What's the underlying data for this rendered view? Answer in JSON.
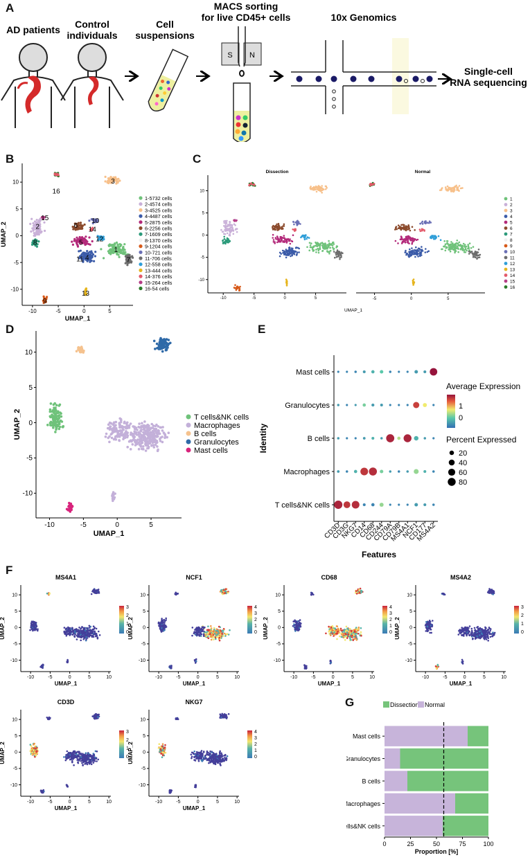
{
  "panels": {
    "A": "A",
    "B": "B",
    "C": "C",
    "D": "D",
    "E": "E",
    "F": "F",
    "G": "G"
  },
  "workflow": {
    "ad_patients": "AD patients",
    "control": [
      "Control",
      "individuals"
    ],
    "cell_suspensions": [
      "Cell",
      "suspensions"
    ],
    "macs": [
      "MACS sorting",
      "for live CD45+ cells"
    ],
    "macs_s": "S",
    "macs_n": "N",
    "tenx": "10x Genomics",
    "scrna": [
      "Single-cell",
      "RNA sequencing"
    ]
  },
  "umap": {
    "xlabel": "UMAP_1",
    "ylabel": "UMAP_2"
  },
  "cluster_colors": [
    "#6fc27a",
    "#c9b0d8",
    "#f7c08a",
    "#3b5ba8",
    "#b32a7a",
    "#8b4a2c",
    "#2b9a7a",
    "#f0f0f0",
    "#d75a1a",
    "#6a6fb5",
    "#6d6d6d",
    "#2f9ed8",
    "#e6b51e",
    "#e35a6a",
    "#b53d86",
    "#2a7a2a"
  ],
  "panelB": {
    "legend": [
      "1-5732 cells",
      "2-4574 cells",
      "3-4525 cells",
      "4-4487 cells",
      "5-2875 cells",
      "6-2256 cells",
      "7-1609 cells",
      "8-1370 cells",
      "9-1204 cells",
      "10-721 cells",
      "11-706 cells",
      "12-558 cells",
      "13-444 cells",
      "14-376 cells",
      "15-264 cells",
      "16-54 cells"
    ],
    "xticks": [
      "-10",
      "-5",
      "0",
      "5"
    ],
    "yticks": [
      "10",
      "5",
      "0",
      "-5",
      "-10"
    ],
    "cluster_labels": [
      "1",
      "2",
      "3",
      "4",
      "5",
      "6",
      "7",
      "8",
      "9",
      "10",
      "11",
      "12",
      "13",
      "14",
      "15",
      "16"
    ]
  },
  "panelC": {
    "titles": [
      "Dissection",
      "Normal"
    ],
    "legend": [
      "1",
      "2",
      "3",
      "4",
      "5",
      "6",
      "7",
      "8",
      "9",
      "10",
      "11",
      "12",
      "13",
      "14",
      "15",
      "16"
    ],
    "xticks": [
      "-10",
      "-5",
      "0",
      "5"
    ],
    "yticks": [
      "10",
      "5",
      "0",
      "-5",
      "-10"
    ]
  },
  "panelD": {
    "legend": [
      "T cells&NK cells",
      "Macrophages",
      "B cells",
      "Granulocytes",
      "Mast cells"
    ],
    "colors": [
      "#6fc27a",
      "#c3b0d9",
      "#f5c28e",
      "#2f6aa8",
      "#d8247c"
    ],
    "xticks": [
      "-10",
      "-5",
      "0",
      "5"
    ],
    "yticks": [
      "10",
      "5",
      "0",
      "-5",
      "-10"
    ]
  },
  "chart_data": [
    {
      "type": "scatter",
      "panel": "E",
      "title": "",
      "xlabel": "Features",
      "ylabel": "Identity",
      "features": [
        "CD3D",
        "CD3G",
        "NKG7",
        "CD14",
        "CD68",
        "CD244",
        "CD79A",
        "CD79B",
        "MS4A1",
        "NCF1",
        "CD177",
        "MS4A2"
      ],
      "identities": [
        "Mast cells",
        "Granulocytes",
        "B cells",
        "Macrophages",
        "T cells&NK cells"
      ],
      "legend_title_color": "Average Expression",
      "color_ticks": [
        "1",
        "0"
      ],
      "legend_title_size": "Percent Expressed",
      "size_ticks": [
        "20",
        "40",
        "60",
        "80"
      ],
      "pct_expressed": [
        [
          2,
          2,
          3,
          5,
          8,
          10,
          3,
          2,
          2,
          10,
          5,
          70
        ],
        [
          3,
          2,
          2,
          8,
          6,
          5,
          2,
          2,
          2,
          45,
          15,
          2
        ],
        [
          3,
          2,
          2,
          4,
          5,
          3,
          85,
          8,
          80,
          20,
          3,
          2
        ],
        [
          4,
          3,
          8,
          75,
          82,
          10,
          3,
          3,
          3,
          25,
          5,
          3
        ],
        [
          88,
          55,
          75,
          5,
          8,
          15,
          2,
          2,
          2,
          10,
          5,
          3
        ]
      ],
      "avg_expression": [
        [
          -0.3,
          -0.3,
          -0.3,
          -0.2,
          -0.1,
          0.0,
          -0.3,
          -0.3,
          -0.3,
          -0.2,
          -0.2,
          2.0
        ],
        [
          -0.2,
          -0.3,
          -0.2,
          0.1,
          -0.2,
          -0.2,
          -0.3,
          -0.3,
          -0.3,
          1.5,
          0.5,
          -0.3
        ],
        [
          -0.2,
          -0.3,
          -0.3,
          -0.2,
          -0.1,
          -0.2,
          1.8,
          0.3,
          1.8,
          -0.1,
          -0.2,
          -0.3
        ],
        [
          -0.2,
          -0.3,
          -0.1,
          1.6,
          1.7,
          0.1,
          -0.2,
          -0.3,
          -0.2,
          0.2,
          -0.1,
          -0.3
        ],
        [
          1.8,
          1.6,
          1.7,
          -0.3,
          -0.3,
          0.2,
          -0.3,
          -0.3,
          -0.3,
          -0.2,
          -0.2,
          -0.3
        ]
      ]
    },
    {
      "type": "bar",
      "panel": "G",
      "title": "",
      "orientation": "horizontal-stacked",
      "categories": [
        "Mast cells",
        "Granulocytes",
        "B cells",
        "Macrophages",
        "T cells&NK cells"
      ],
      "series": [
        {
          "name": "Normal",
          "values": [
            80,
            15,
            22,
            68,
            56
          ],
          "color": "#c7b4da"
        },
        {
          "name": "Dissection",
          "values": [
            20,
            85,
            78,
            32,
            44
          ],
          "color": "#76c47b"
        }
      ],
      "xlabel": "Proportion [%]",
      "ylabel": "",
      "xlim": [
        0,
        100
      ],
      "xticks": [
        "0",
        "25",
        "50",
        "75",
        "100"
      ],
      "reference_line": 57
    }
  ],
  "panelF": {
    "features": [
      {
        "name": "MS4A1",
        "ticks": [
          "3",
          "2",
          "1",
          "0"
        ]
      },
      {
        "name": "NCF1",
        "ticks": [
          "4",
          "3",
          "2",
          "1",
          "0"
        ]
      },
      {
        "name": "CD68",
        "ticks": [
          "4",
          "3",
          "2",
          "1",
          "0"
        ]
      },
      {
        "name": "MS4A2",
        "ticks": [
          "3",
          "2",
          "1",
          "0"
        ]
      },
      {
        "name": "CD3D",
        "ticks": [
          "3",
          "2",
          "1",
          "0"
        ]
      },
      {
        "name": "NKG7",
        "ticks": [
          "4",
          "3",
          "2",
          "1",
          "0"
        ]
      }
    ],
    "xticks": [
      "-10",
      "-5",
      "0",
      "5",
      "10"
    ],
    "yticks": [
      "10",
      "5",
      "0",
      "-5",
      "-10"
    ]
  }
}
